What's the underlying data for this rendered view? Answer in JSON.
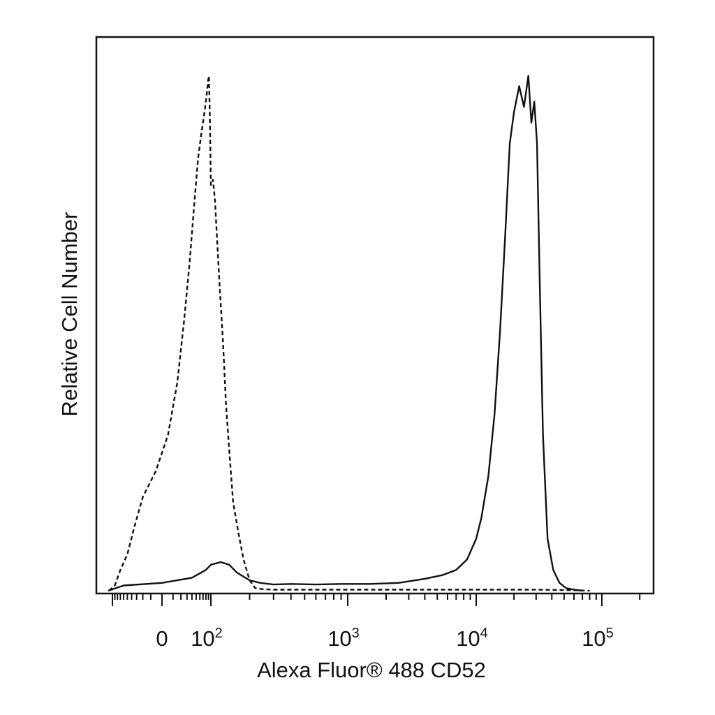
{
  "chart_data": {
    "type": "line",
    "xlabel": "Alexa Fluor® 488 CD52",
    "ylabel": "Relative Cell Number",
    "x_scale": "logicle",
    "x_tick_labels": [
      {
        "value": 0,
        "base": "0",
        "exp": ""
      },
      {
        "value": 100,
        "base": "10",
        "exp": "2"
      },
      {
        "value": 1000,
        "base": "10",
        "exp": "3"
      },
      {
        "value": 10000,
        "base": "10",
        "exp": "4"
      },
      {
        "value": 100000,
        "base": "10",
        "exp": "5"
      }
    ],
    "xlim": [
      -200,
      230000
    ],
    "ylim": [
      0,
      100
    ],
    "grid": false,
    "legend": "none",
    "series": [
      {
        "style": "dashed",
        "color": "#111111",
        "x": [
          -115,
          -90,
          -70,
          -50,
          -35,
          -20,
          -5,
          5,
          15,
          25,
          35,
          45,
          55,
          65,
          75,
          82,
          88,
          92,
          96,
          100,
          104,
          108,
          112,
          118,
          125,
          132,
          140,
          150,
          165,
          180,
          200,
          220,
          250,
          300,
          500,
          1000,
          5000,
          10000,
          30000,
          60000,
          80000
        ],
        "y": [
          0,
          1,
          4,
          7,
          12,
          18,
          23,
          30,
          40,
          52,
          63,
          74,
          83,
          88,
          92,
          95,
          98,
          99,
          90,
          78,
          79,
          75,
          68,
          58,
          48,
          36,
          27,
          17,
          11,
          6,
          2,
          0.5,
          0.3,
          0.2,
          0.2,
          0.2,
          0.2,
          0.2,
          0.2,
          0.1,
          0
        ]
      },
      {
        "style": "solid",
        "color": "#111111",
        "x": [
          -120,
          -60,
          0,
          40,
          80,
          100,
          120,
          140,
          160,
          200,
          240,
          300,
          400,
          600,
          900,
          1500,
          2500,
          4000,
          5500,
          7000,
          8500,
          10000,
          11000,
          12500,
          14000,
          15500,
          17000,
          18500,
          20000,
          22000,
          24000,
          26000,
          27500,
          29000,
          30500,
          32000,
          34000,
          37000,
          41000,
          46000,
          52000,
          60000,
          70000
        ],
        "y": [
          0,
          1,
          1.5,
          2.5,
          4,
          5,
          5.5,
          5,
          3.5,
          2,
          1.5,
          1.2,
          1.3,
          1.2,
          1.3,
          1.3,
          1.5,
          2.3,
          3,
          4,
          6,
          10,
          14,
          22,
          34,
          50,
          68,
          86,
          92,
          97,
          93,
          99,
          90,
          94,
          86,
          60,
          30,
          10,
          4,
          1.5,
          0.5,
          0.2,
          0
        ]
      }
    ]
  }
}
